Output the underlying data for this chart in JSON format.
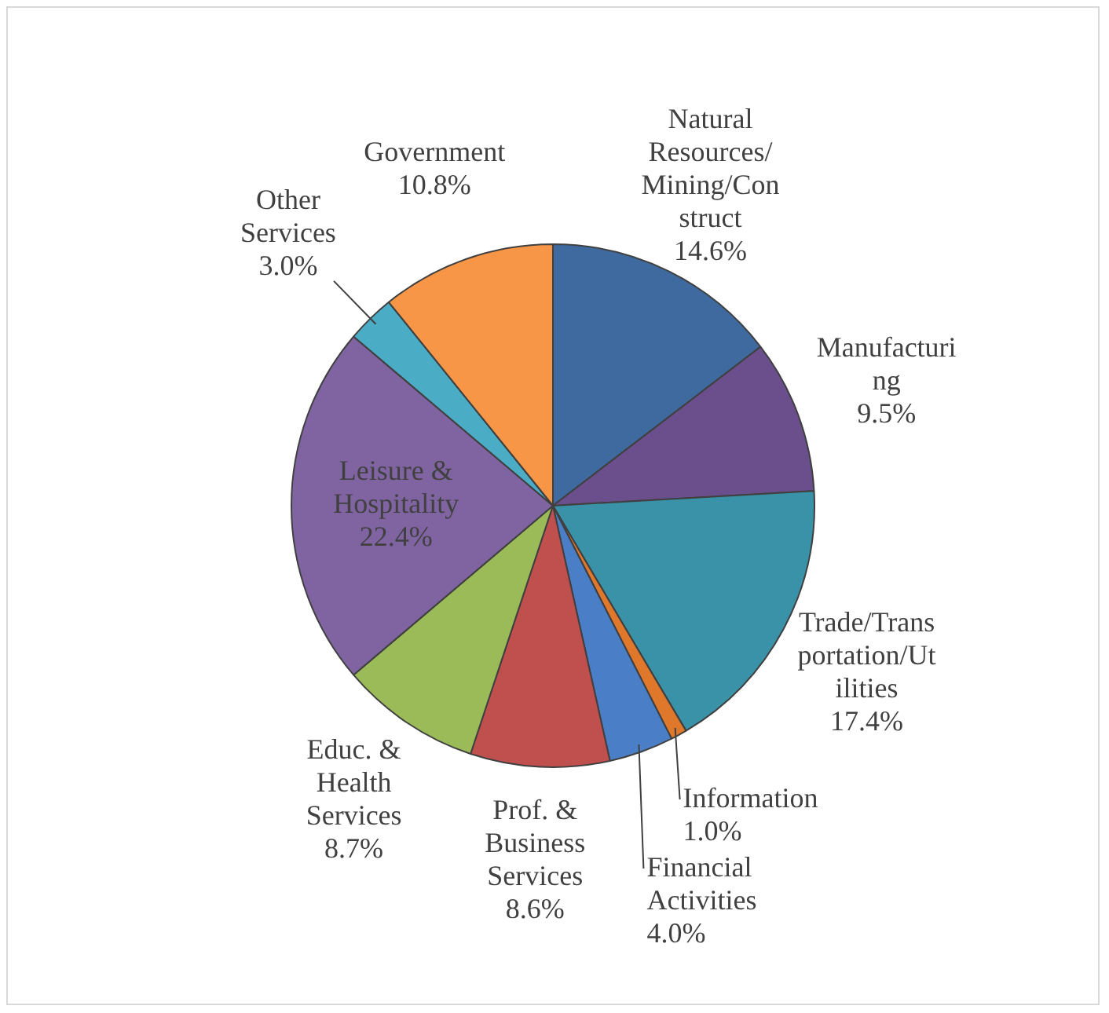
{
  "chart_data": {
    "type": "pie",
    "categories": [
      "Natural Resources/Mining/Construct",
      "Manufacturing",
      "Trade/Transportation/Utilities",
      "Information",
      "Financial Activities",
      "Prof. & Business Services",
      "Educ. & Health Services",
      "Leisure & Hospitality",
      "Other Services",
      "Government"
    ],
    "values": [
      14.6,
      9.5,
      17.4,
      1.0,
      4.0,
      8.6,
      8.7,
      22.4,
      3.0,
      10.8
    ],
    "value_labels": [
      "14.6%",
      "9.5%",
      "17.4%",
      "1.0%",
      "4.0%",
      "8.6%",
      "8.7%",
      "22.4%",
      "3.0%",
      "10.8%"
    ],
    "colors": [
      "#3e6aa0",
      "#6a4f8c",
      "#3a92a8",
      "#e0782c",
      "#4a7fc8",
      "#c0504d",
      "#9bbb59",
      "#8064a2",
      "#4bacc6",
      "#f79646"
    ],
    "legend": false
  }
}
